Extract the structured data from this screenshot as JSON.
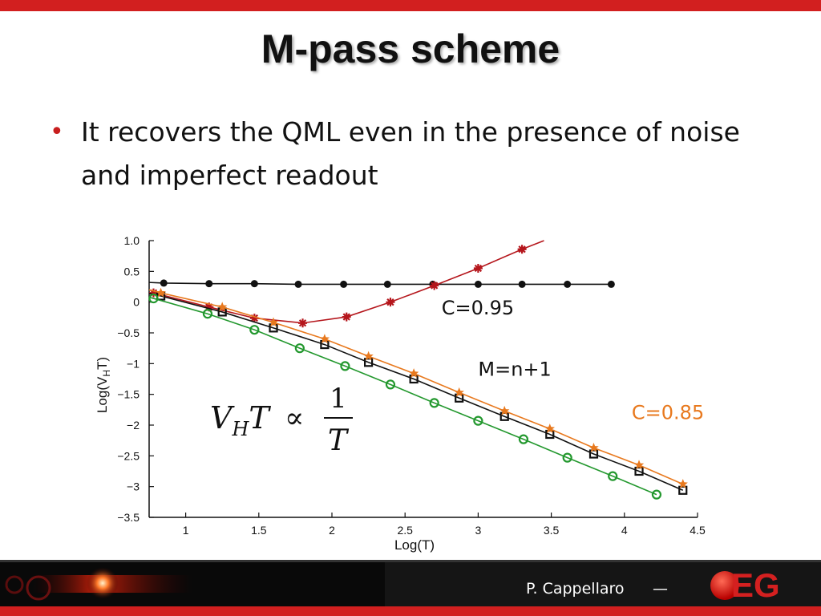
{
  "slide": {
    "title": "M-pass scheme",
    "bullet": "It recovers the QML even in the presence of noise and imperfect readout",
    "footer_author": "P. Cappellaro",
    "footer_sep": "—",
    "logo_text": "EG",
    "accent_color": "#d21f1f"
  },
  "chart_data": {
    "type": "line",
    "xlabel": "Log(T)",
    "ylabel": "Log(V",
    "ylabel_sub": "H",
    "ylabel_suffix": "T)",
    "xlim": [
      0.75,
      4.5
    ],
    "ylim": [
      -3.5,
      1.0
    ],
    "x_ticks": [
      1,
      1.5,
      2,
      2.5,
      3,
      3.5,
      4,
      4.5
    ],
    "x_tick_labels": [
      "1",
      "1.5",
      "2",
      "2.5",
      "3",
      "3.5",
      "4",
      "4.5"
    ],
    "y_ticks": [
      1.0,
      0.5,
      0,
      -0.5,
      -1,
      -1.5,
      -2,
      -2.5,
      -3,
      -3.5
    ],
    "y_tick_labels": [
      "1.0",
      "0.5",
      "0",
      "−0.5",
      "−1",
      "−1.5",
      "−2",
      "−2.5",
      "−3",
      "−3.5"
    ],
    "equation": {
      "lhs": "V",
      "lhs_sub": "H",
      "lhs_t": "T",
      "prop": "∝",
      "num": "1",
      "den": "T"
    },
    "annotations": [
      {
        "text": "C=0.95",
        "x": 2.75,
        "y": -0.2,
        "color": "#111111"
      },
      {
        "text": "M=n+1",
        "x": 3.0,
        "y": -1.2,
        "color": "#111111"
      },
      {
        "text": "C=0.85",
        "x": 4.05,
        "y": -1.9,
        "color": "#e8791e"
      }
    ],
    "series": [
      {
        "color": "#111111",
        "marker": "dot",
        "x": [
          0.85,
          1.16,
          1.47,
          1.77,
          2.08,
          2.38,
          2.69,
          3.0,
          3.3,
          3.61,
          3.91
        ],
        "y": [
          0.31,
          0.3,
          0.3,
          0.29,
          0.29,
          0.29,
          0.29,
          0.29,
          0.29,
          0.29,
          0.29
        ],
        "line_start": [
          0.75,
          0.32
        ]
      },
      {
        "color": "#b5161c",
        "marker": "asterisk",
        "x": [
          0.78,
          1.16,
          1.47,
          1.8,
          2.1,
          2.4,
          2.7,
          3.0,
          3.3
        ],
        "y": [
          0.15,
          -0.08,
          -0.26,
          -0.34,
          -0.24,
          0.0,
          0.27,
          0.55,
          0.86
        ],
        "line_end": [
          3.45,
          1.0
        ]
      },
      {
        "color": "#111111",
        "marker": "square",
        "x": [
          0.83,
          1.25,
          1.6,
          1.95,
          2.25,
          2.56,
          2.87,
          3.18,
          3.49,
          3.79,
          4.1,
          4.4
        ],
        "y": [
          0.1,
          -0.16,
          -0.42,
          -0.69,
          -0.98,
          -1.25,
          -1.56,
          -1.86,
          -2.15,
          -2.47,
          -2.75,
          -3.06
        ],
        "line_start": [
          0.75,
          0.14
        ]
      },
      {
        "color": "#e8791e",
        "marker": "star",
        "x": [
          0.83,
          1.25,
          1.6,
          1.95,
          2.25,
          2.56,
          2.87,
          3.18,
          3.49,
          3.79,
          4.1,
          4.4
        ],
        "y": [
          0.15,
          -0.08,
          -0.33,
          -0.6,
          -0.88,
          -1.16,
          -1.47,
          -1.77,
          -2.06,
          -2.37,
          -2.65,
          -2.96
        ],
        "line_start": [
          0.75,
          0.2
        ]
      },
      {
        "color": "#23982e",
        "marker": "circle",
        "x": [
          0.78,
          1.15,
          1.47,
          1.78,
          2.09,
          2.4,
          2.7,
          3.0,
          3.31,
          3.61,
          3.92,
          4.22
        ],
        "y": [
          0.06,
          -0.19,
          -0.45,
          -0.75,
          -1.04,
          -1.34,
          -1.64,
          -1.93,
          -2.23,
          -2.53,
          -2.83,
          -3.13
        ],
        "line_start": [
          0.75,
          0.08
        ]
      }
    ]
  }
}
